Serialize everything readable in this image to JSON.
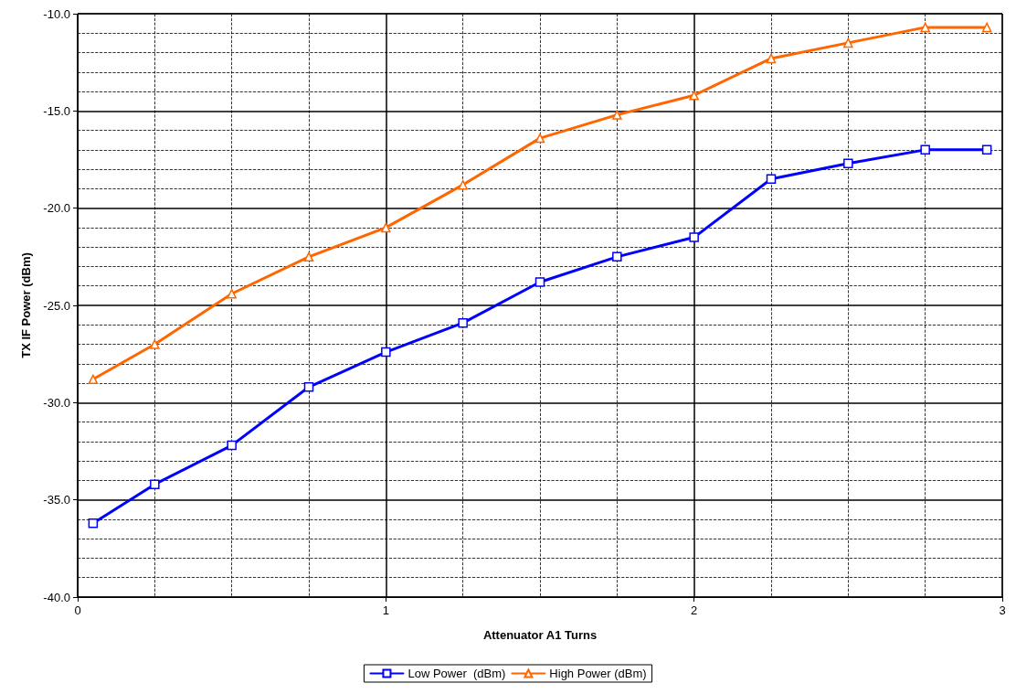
{
  "chart_data": {
    "type": "line",
    "xlabel": "Attenuator A1 Turns",
    "ylabel": "TX IF Power (dBm)",
    "x": [
      0.05,
      0.25,
      0.5,
      0.75,
      1,
      1.25,
      1.5,
      1.75,
      2,
      2.25,
      2.5,
      2.75,
      2.95
    ],
    "series": [
      {
        "name": "Low Power  (dBm)",
        "color": "#0000ff",
        "marker": "square",
        "values": [
          -36.2,
          -34.2,
          -32.2,
          -29.2,
          -27.4,
          -25.9,
          -23.8,
          -22.5,
          -21.5,
          -18.5,
          -17.7,
          -17.0,
          -17.0
        ]
      },
      {
        "name": "High Power (dBm)",
        "color": "#ff6600",
        "marker": "triangle",
        "values": [
          -28.8,
          -27.0,
          -24.4,
          -22.5,
          -21.0,
          -18.8,
          -16.4,
          -15.2,
          -14.2,
          -12.3,
          -11.5,
          -10.7,
          -10.7
        ]
      }
    ],
    "xlim": [
      0,
      3
    ],
    "xticks": [
      0,
      1,
      2,
      3
    ],
    "ylim": [
      -40,
      -10
    ],
    "yticks": [
      {
        "value": -40,
        "label": "-40.0"
      },
      {
        "value": -35,
        "label": "-35.0"
      },
      {
        "value": -30,
        "label": "-30.0"
      },
      {
        "value": -25,
        "label": "-25.0"
      },
      {
        "value": -20,
        "label": "-20.0"
      },
      {
        "value": -15,
        "label": "-15.0"
      },
      {
        "value": -10,
        "label": "-10.0"
      }
    ],
    "grid": true,
    "legend": "bottom",
    "line_style": "solid"
  }
}
